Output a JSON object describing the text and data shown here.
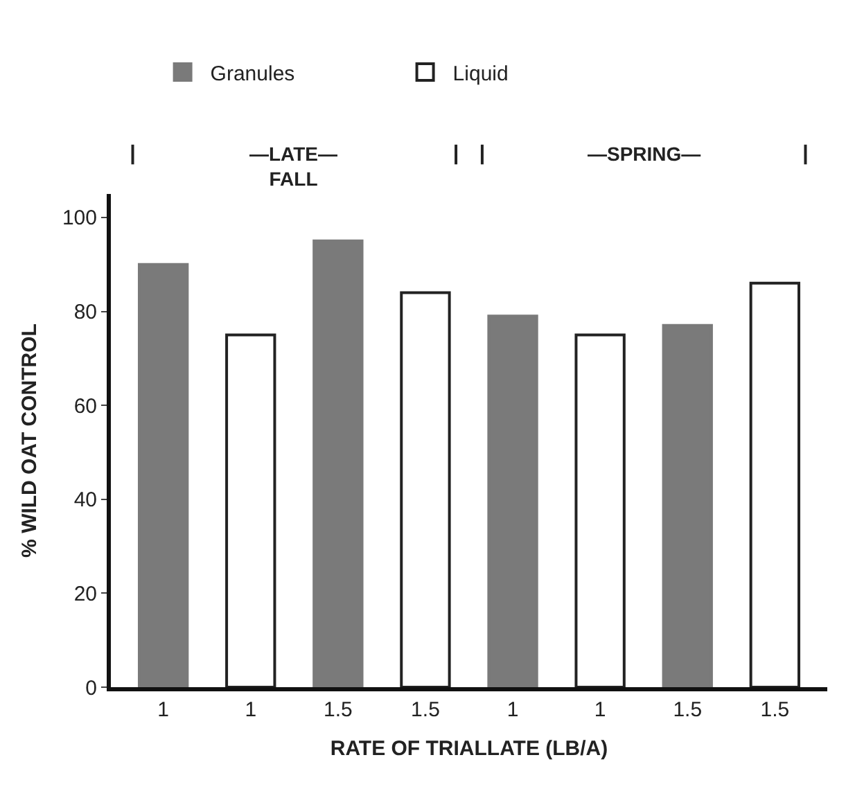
{
  "chart_data": {
    "type": "bar",
    "xlabel": "RATE OF TRIALLATE (LB/A)",
    "ylabel": "% WILD OAT CONTROL",
    "categories": [
      "1",
      "1",
      "1.5",
      "1.5",
      "1",
      "1",
      "1.5",
      "1.5"
    ],
    "series": [
      {
        "name": "Granules",
        "color": "#7a7a7a",
        "values": [
          90,
          null,
          95,
          null,
          79,
          null,
          77,
          null
        ]
      },
      {
        "name": "Liquid",
        "color": "#ffffff",
        "values": [
          null,
          75,
          null,
          84,
          null,
          75,
          null,
          86
        ]
      }
    ],
    "ylim": [
      0,
      105
    ],
    "yticks": [
      0,
      20,
      40,
      60,
      80,
      100
    ],
    "legend": "top",
    "annotations": [
      "—LATE—\nFALL",
      "—SPRING—"
    ]
  }
}
